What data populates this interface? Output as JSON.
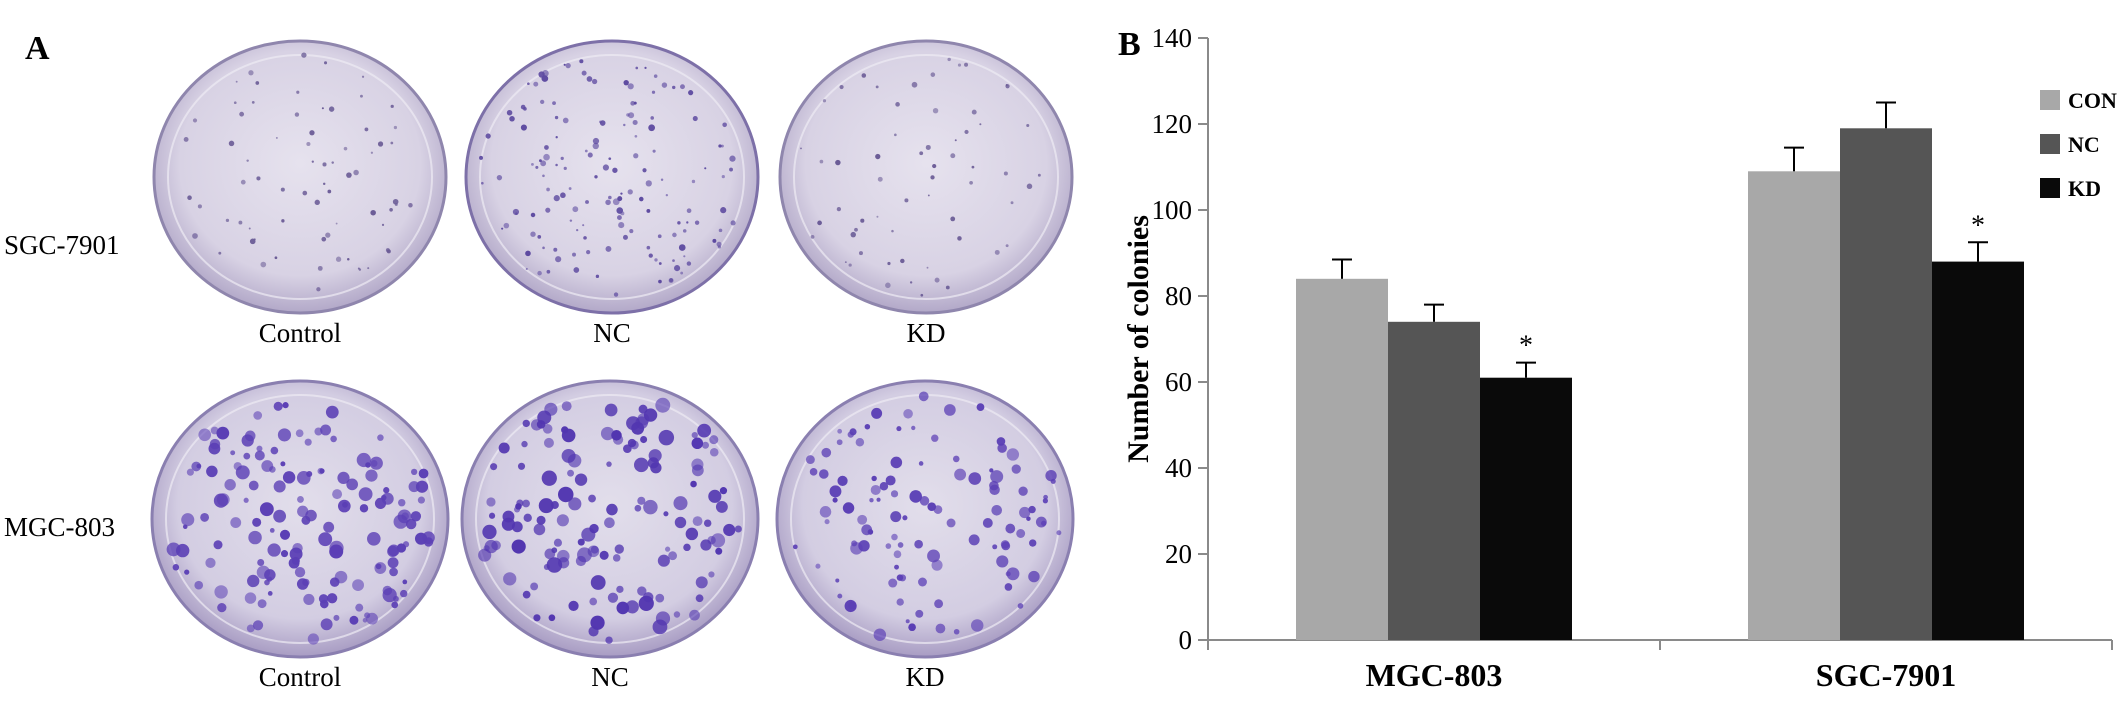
{
  "panel_a": {
    "letter": "A",
    "rows": [
      {
        "label": "SGC-7901",
        "columns": [
          "Control",
          "NC",
          "KD"
        ]
      },
      {
        "label": "MGC-803",
        "columns": [
          "Control",
          "NC",
          "KD"
        ]
      }
    ]
  },
  "panel_b": {
    "letter": "B"
  },
  "chart_data": {
    "type": "bar",
    "title": "",
    "xlabel": "",
    "ylabel": "Number of colonies",
    "ylim": [
      0,
      140
    ],
    "yticks": [
      0,
      20,
      40,
      60,
      80,
      100,
      120,
      140
    ],
    "categories": [
      "MGC-803",
      "SGC-7901"
    ],
    "series": [
      {
        "name": "CON",
        "values": [
          84,
          109
        ],
        "errors": [
          4.5,
          5.5
        ],
        "color": "#a8a8a8"
      },
      {
        "name": "NC",
        "values": [
          74,
          119
        ],
        "errors": [
          4,
          6
        ],
        "color": "#555555"
      },
      {
        "name": "KD",
        "values": [
          61,
          88
        ],
        "errors": [
          3.5,
          4.5
        ],
        "color": "#0a0a0a"
      }
    ],
    "annotations": [
      {
        "category": "MGC-803",
        "series": "KD",
        "text": "*"
      },
      {
        "category": "SGC-7901",
        "series": "KD",
        "text": "*"
      }
    ],
    "legend_position": "top-right",
    "grid": false
  }
}
